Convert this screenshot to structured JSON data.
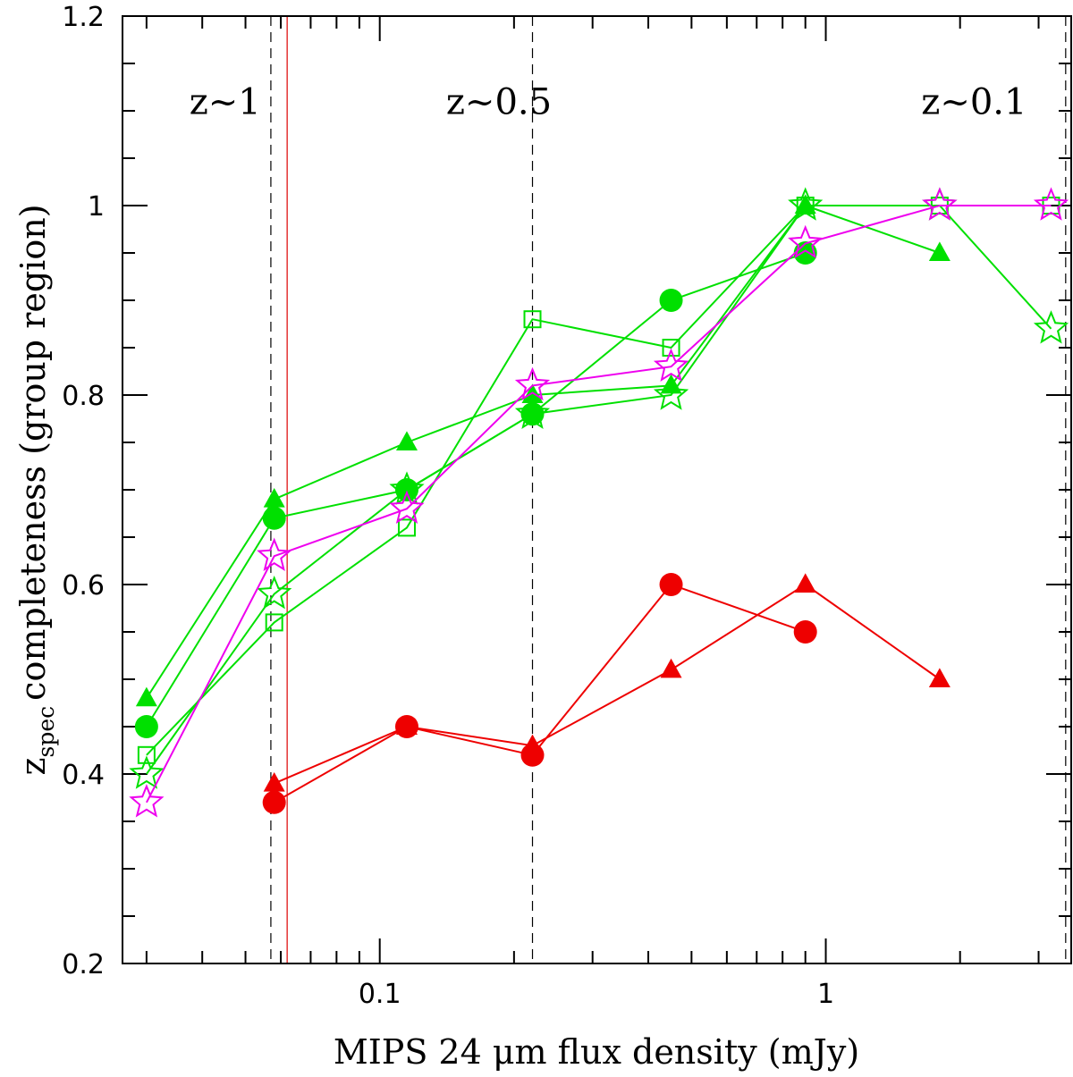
{
  "chart_data": {
    "type": "scatter",
    "title": "",
    "xlabel": "MIPS 24 μm flux density (mJy)",
    "ylabel_main": "completeness (group region)",
    "ylabel_z": "z",
    "ylabel_sub": "spec",
    "xscale": "log",
    "xlim": [
      0.0265,
      3.55
    ],
    "ylim": [
      0.2,
      1.2
    ],
    "x_ticks": [
      {
        "value": 0.1,
        "label": "0.1"
      },
      {
        "value": 1,
        "label": "1"
      }
    ],
    "y_ticks": [
      {
        "value": 0.2,
        "label": "0.2"
      },
      {
        "value": 0.4,
        "label": "0.4"
      },
      {
        "value": 0.6,
        "label": "0.6"
      },
      {
        "value": 0.8,
        "label": "0.8"
      },
      {
        "value": 1.0,
        "label": "1"
      },
      {
        "value": 1.2,
        "label": "1.2"
      }
    ],
    "grid": false,
    "annotations": [
      {
        "text": "z~1",
        "x": 0.045,
        "y": 1.11
      },
      {
        "text": "z~0.5",
        "x": 0.185,
        "y": 1.11
      },
      {
        "text": "z~0.1",
        "x": 2.15,
        "y": 1.11
      }
    ],
    "vlines": [
      {
        "x": 0.057,
        "style": "dashed",
        "color": "#000000"
      },
      {
        "x": 0.22,
        "style": "dashed",
        "color": "#000000"
      },
      {
        "x": 3.45,
        "style": "dashed",
        "color": "#000000"
      },
      {
        "x": 0.062,
        "style": "solid",
        "color": "#dd0000"
      }
    ],
    "series": [
      {
        "marker": "circle-filled",
        "color": "#00e000",
        "x": [
          0.03,
          0.058,
          0.115,
          0.22,
          0.45,
          0.9
        ],
        "y": [
          0.45,
          0.67,
          0.7,
          0.78,
          0.9,
          0.95
        ]
      },
      {
        "marker": "triangle-filled",
        "color": "#00e000",
        "x": [
          0.03,
          0.058,
          0.115,
          0.22,
          0.45,
          0.9,
          1.8
        ],
        "y": [
          0.48,
          0.69,
          0.75,
          0.8,
          0.81,
          1.0,
          0.95
        ]
      },
      {
        "marker": "square-open",
        "color": "#00e000",
        "x": [
          0.03,
          0.058,
          0.115,
          0.22,
          0.45,
          0.9,
          1.8,
          3.2
        ],
        "y": [
          0.42,
          0.56,
          0.66,
          0.88,
          0.85,
          1.0,
          1.0,
          1.0
        ]
      },
      {
        "marker": "star-open",
        "color": "#00e000",
        "x": [
          0.03,
          0.058,
          0.115,
          0.22,
          0.45,
          0.9,
          1.8,
          3.2
        ],
        "y": [
          0.4,
          0.59,
          0.7,
          0.78,
          0.8,
          1.0,
          1.0,
          0.87
        ]
      },
      {
        "marker": "star-open",
        "color": "#ee00ee",
        "x": [
          0.03,
          0.058,
          0.115,
          0.22,
          0.45,
          0.9,
          1.8,
          3.2
        ],
        "y": [
          0.37,
          0.63,
          0.68,
          0.81,
          0.83,
          0.96,
          1.0,
          1.0
        ]
      },
      {
        "marker": "circle-filled",
        "color": "#ee0000",
        "x": [
          0.058,
          0.115,
          0.22,
          0.45,
          0.9
        ],
        "y": [
          0.37,
          0.45,
          0.42,
          0.6,
          0.55
        ]
      },
      {
        "marker": "triangle-filled",
        "color": "#ee0000",
        "x": [
          0.058,
          0.115,
          0.22,
          0.45,
          0.9,
          1.8
        ],
        "y": [
          0.39,
          0.45,
          0.43,
          0.51,
          0.6,
          0.5
        ]
      }
    ]
  }
}
